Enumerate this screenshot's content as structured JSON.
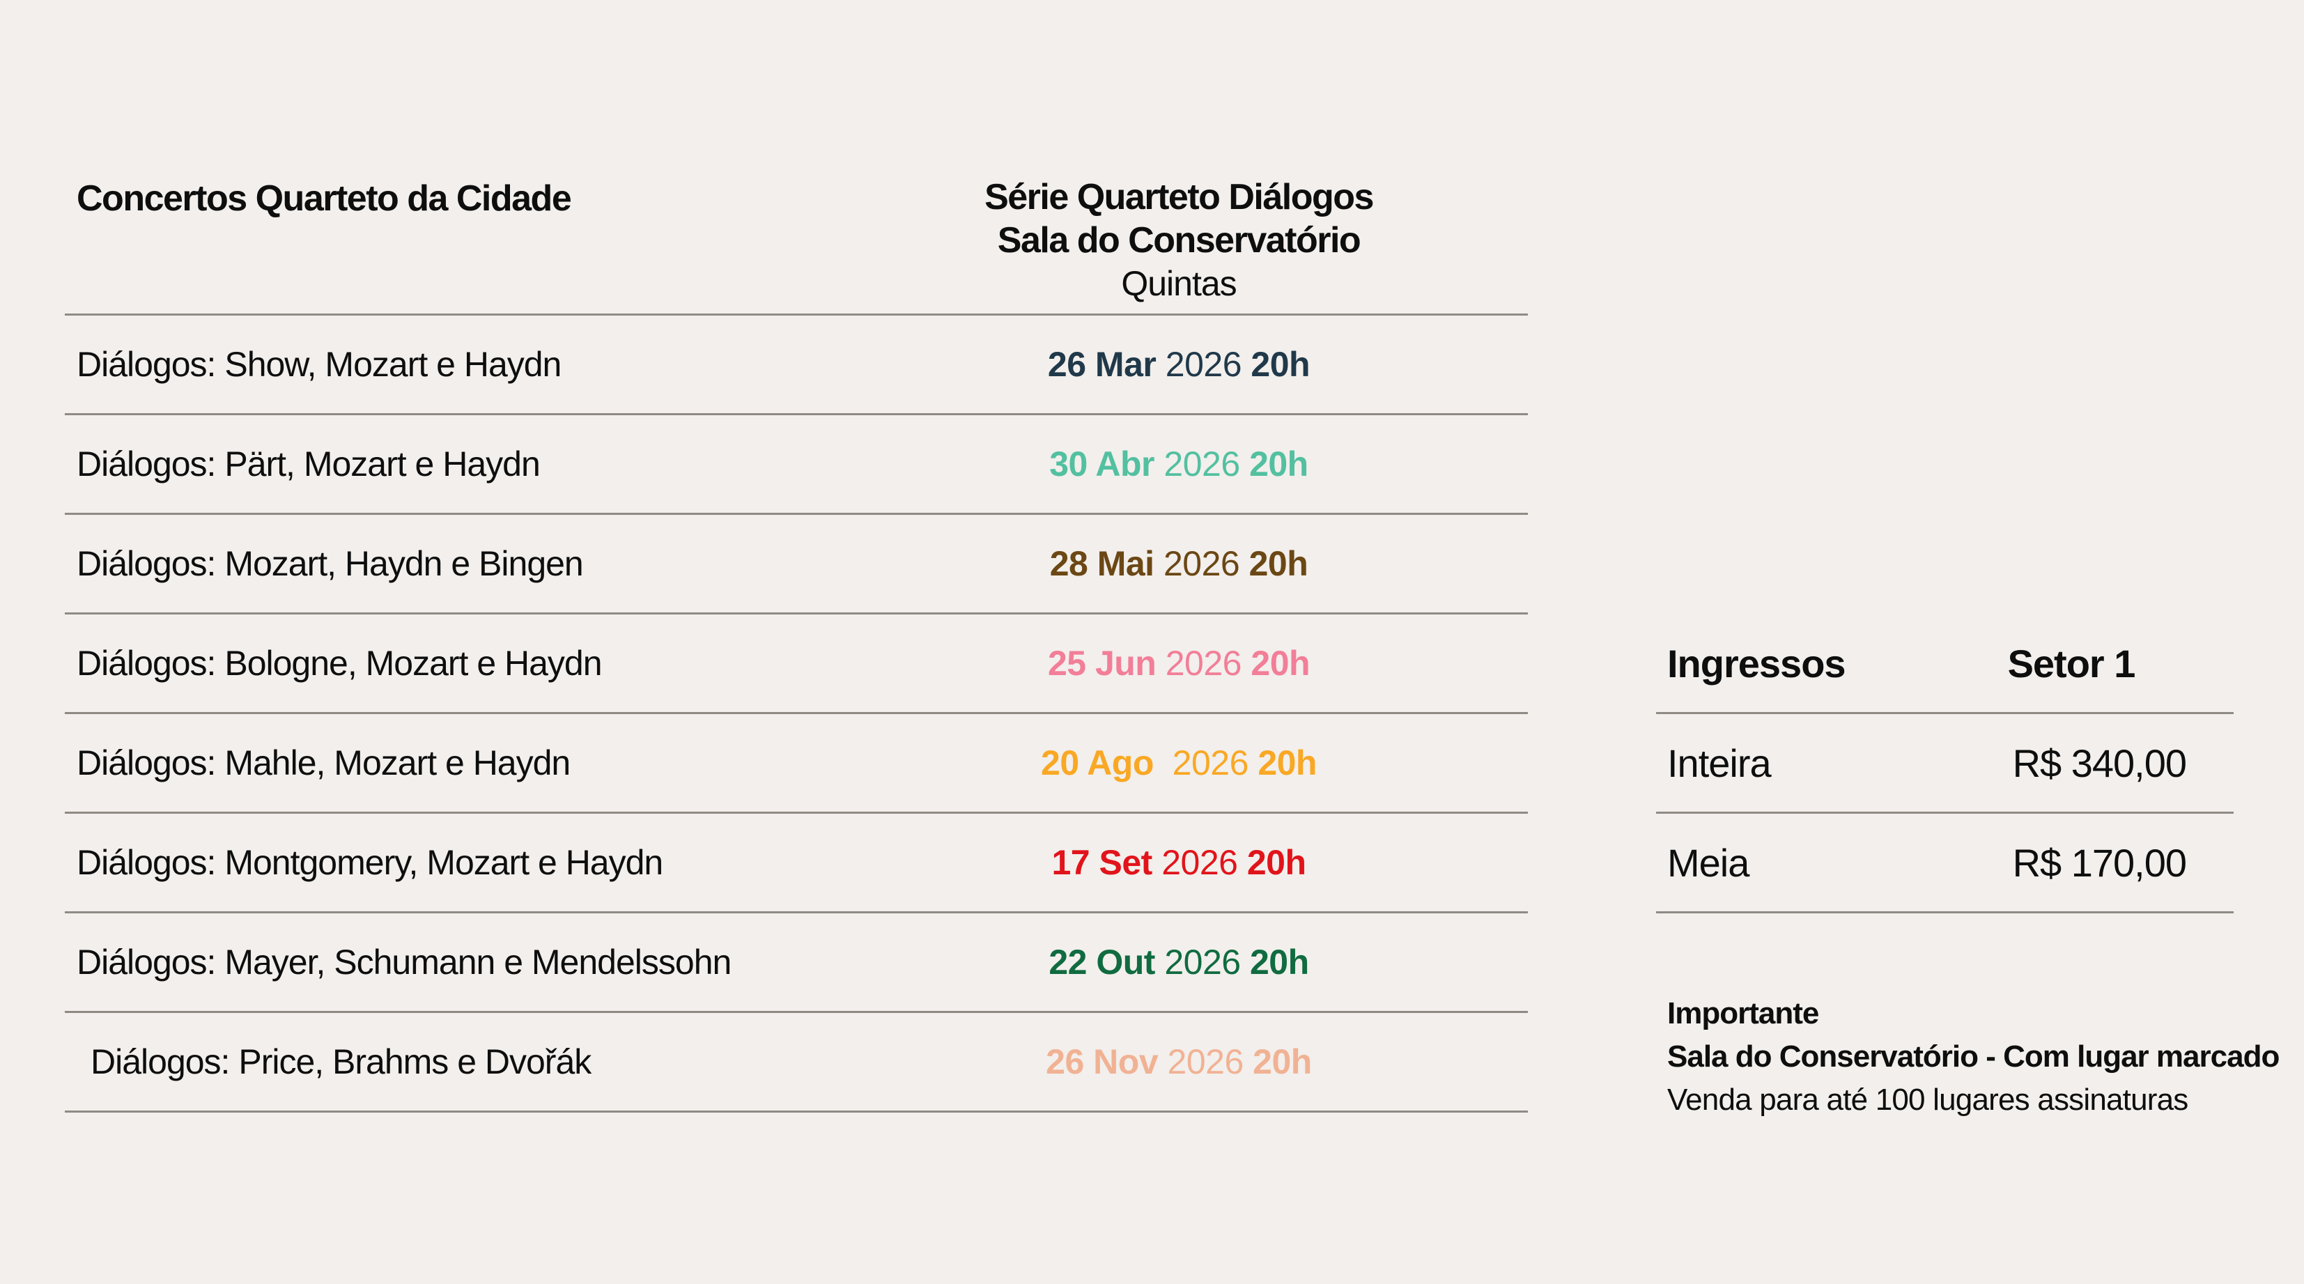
{
  "page": {
    "background_color": "#f2efec",
    "text_color": "#0e0e0e",
    "divider_color": "#8f8a84"
  },
  "schedule": {
    "title": "Concertos Quarteto da Cidade",
    "series_title": "Série Quarteto Diálogos",
    "venue": "Sala do Conservatório",
    "weekday": "Quintas",
    "rows": [
      {
        "title": "Diálogos: Show, Mozart e Haydn",
        "date": "26 Mar",
        "year": "2026",
        "time": "20h",
        "color": "#20394a"
      },
      {
        "title": "Diálogos: Pärt, Mozart e Haydn",
        "date": "30 Abr",
        "year": "2026",
        "time": "20h",
        "color": "#53c0a0"
      },
      {
        "title": "Diálogos: Mozart, Haydn e Bingen",
        "date": "28 Mai",
        "year": "2026",
        "time": "20h",
        "color": "#6b4714"
      },
      {
        "title": "Diálogos: Bologne, Mozart e Haydn",
        "date": "25 Jun",
        "year": "2026",
        "time": "20h",
        "color": "#f27e98"
      },
      {
        "title": "Diálogos: Mahle, Mozart e Haydn",
        "date": "20 Ago ",
        "year": "2026",
        "time": "20h",
        "color": "#f9a825"
      },
      {
        "title": "Diálogos: Montgomery, Mozart e Haydn",
        "date": "17 Set",
        "year": "2026",
        "time": "20h",
        "color": "#e1141b"
      },
      {
        "title": "Diálogos: Mayer, Schumann e Mendelssohn",
        "date": "22 Out",
        "year": "2026",
        "time": "20h",
        "color": "#106b40"
      },
      {
        "title": "Diálogos: Price, Brahms e Dvořák",
        "date": "26 Nov",
        "year": "2026",
        "time": "20h",
        "color": "#f1b294"
      }
    ]
  },
  "tickets": {
    "title": "Ingressos",
    "sector": "Setor 1",
    "rows": [
      {
        "label": "Inteira",
        "price": "R$ 340,00"
      },
      {
        "label": "Meia",
        "price": "R$ 170,00"
      }
    ]
  },
  "notes": {
    "heading": "Importante",
    "line1": "Sala do Conservatório - Com lugar marcado",
    "line2": "Venda para até 100 lugares assinaturas"
  }
}
